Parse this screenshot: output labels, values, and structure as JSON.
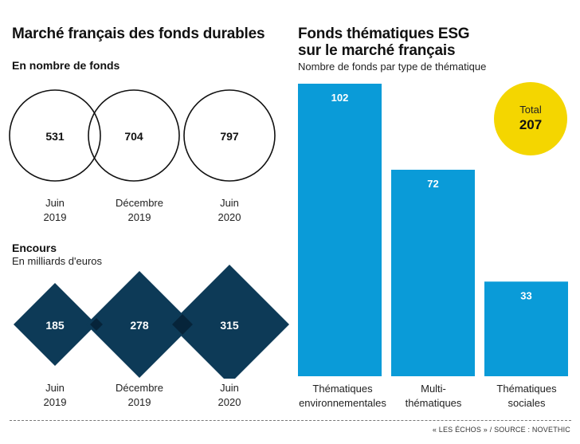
{
  "left": {
    "title": "Marché français des fonds durables",
    "count_section": {
      "subtitle": "En nombre de fonds",
      "periods": [
        {
          "line1": "Juin",
          "line2": "2019"
        },
        {
          "line1": "Décembre",
          "line2": "2019"
        },
        {
          "line1": "Juin",
          "line2": "2020"
        }
      ],
      "values": [
        "531",
        "704",
        "797"
      ]
    },
    "aum_section": {
      "subtitle": "Encours",
      "unit": "En milliards d'euros",
      "periods": [
        {
          "line1": "Juin",
          "line2": "2019"
        },
        {
          "line1": "Décembre",
          "line2": "2019"
        },
        {
          "line1": "Juin",
          "line2": "2020"
        }
      ],
      "values": [
        "185",
        "278",
        "315"
      ]
    }
  },
  "right": {
    "title_line1": "Fonds thématiques ESG",
    "title_line2": "sur le marché français",
    "subtitle": "Nombre de fonds par type de thématique",
    "total_label": "Total",
    "total_value": "207"
  },
  "colors": {
    "bar": "#0a9bd8",
    "diamond": "#0d3a57",
    "total_circle": "#f4d600",
    "circle_stroke": "#111111"
  },
  "chart_data": [
    {
      "type": "bar",
      "categories": [
        "Juin 2019",
        "Décembre 2019",
        "Juin 2020"
      ],
      "values": [
        531,
        704,
        797
      ],
      "title": "Marché français des fonds durables",
      "subtitle": "En nombre de fonds"
    },
    {
      "type": "bar",
      "categories": [
        "Juin 2019",
        "Décembre 2019",
        "Juin 2020"
      ],
      "values": [
        185,
        278,
        315
      ],
      "title": "Encours",
      "subtitle": "En milliards d'euros"
    },
    {
      "type": "bar",
      "title": "Fonds thématiques ESG sur le marché français",
      "subtitle": "Nombre de fonds par type de thématique",
      "categories": [
        {
          "line1": "Thématiques",
          "line2": "environnementales"
        },
        {
          "line1": "Multi-",
          "line2": "thématiques"
        },
        {
          "line1": "Thématiques",
          "line2": "sociales"
        }
      ],
      "values": [
        102,
        72,
        33
      ],
      "ylim": [
        0,
        102
      ]
    }
  ],
  "footer": {
    "source": "« LES ÉCHOS » / SOURCE : NOVETHIC"
  }
}
